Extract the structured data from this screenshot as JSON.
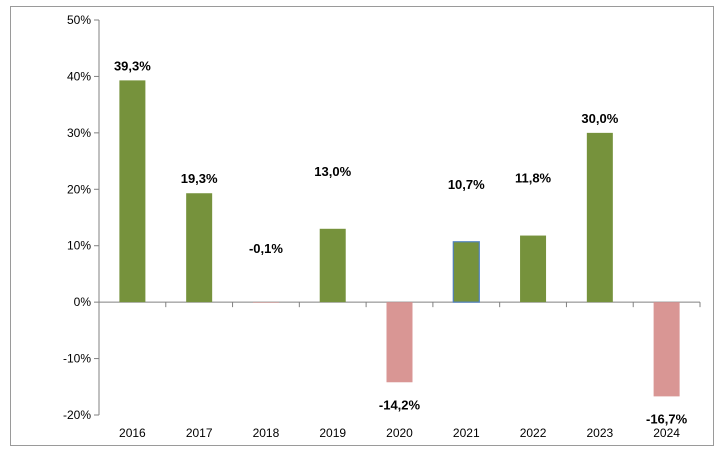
{
  "chart_data": {
    "type": "bar",
    "title": "",
    "xlabel": "",
    "ylabel": "",
    "categories": [
      "2016",
      "2017",
      "2018",
      "2019",
      "2020",
      "2021",
      "2022",
      "2023",
      "2024"
    ],
    "values": [
      39.3,
      19.3,
      -0.1,
      13.0,
      -14.2,
      10.7,
      11.8,
      30.0,
      -16.7
    ],
    "data_labels": [
      "39,3%",
      "19,3%",
      "-0,1%",
      "13,0%",
      "-14,2%",
      "10,7%",
      "11,8%",
      "30,0%",
      "-16,7%"
    ],
    "ylim": [
      -20,
      50
    ],
    "y_ticks": [
      -20,
      -10,
      0,
      10,
      20,
      30,
      40,
      50
    ],
    "y_tick_labels": [
      "-20%",
      "-10%",
      "0%",
      "10%",
      "20%",
      "30%",
      "40%",
      "50%"
    ],
    "grid": false,
    "legend": "none",
    "colors": {
      "positive": "#76923c",
      "negative": "#d99694",
      "highlight_border": "#4f81bd",
      "axis": "#808080"
    },
    "highlighted_category": "2021"
  }
}
